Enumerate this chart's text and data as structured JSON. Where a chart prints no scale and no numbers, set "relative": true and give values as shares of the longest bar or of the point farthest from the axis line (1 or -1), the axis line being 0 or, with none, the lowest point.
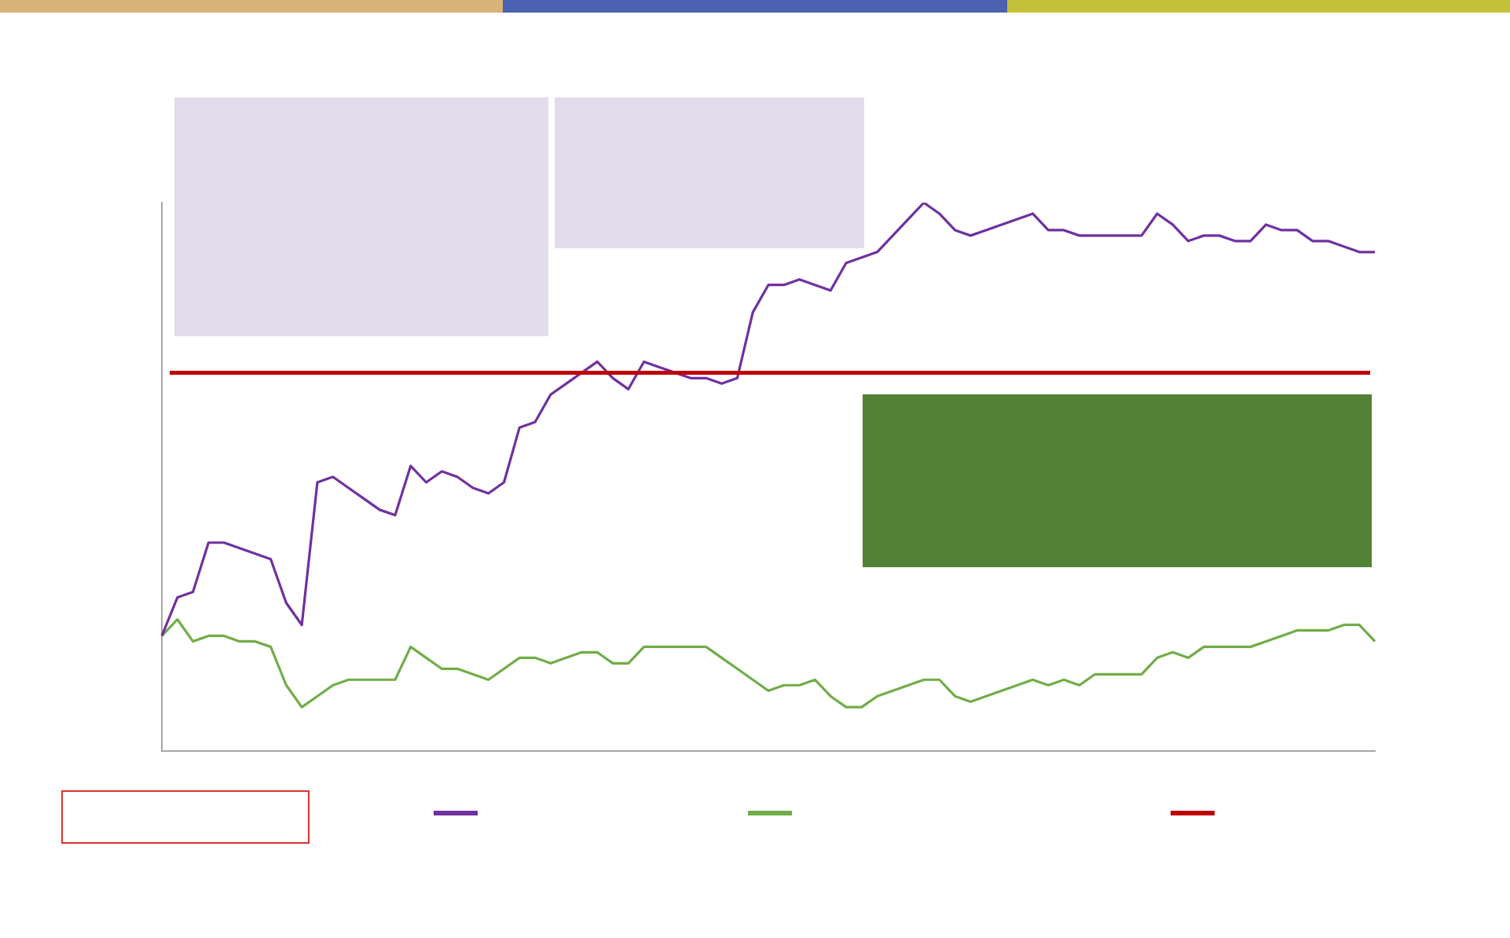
{
  "chart_data": {
    "type": "line",
    "relative": true,
    "legend": false,
    "grid": false,
    "marker": "none",
    "line_style": "solid",
    "categories": [
      null,
      null,
      null,
      null,
      null,
      null,
      null,
      null,
      null,
      null,
      null,
      null,
      null,
      null,
      null,
      null,
      null,
      null,
      null,
      null,
      null,
      null,
      null,
      null,
      null,
      null,
      null,
      null,
      null,
      null,
      null,
      null,
      null,
      null,
      null,
      null,
      null,
      null,
      null,
      null,
      null,
      null,
      null,
      null,
      null,
      null,
      null,
      null,
      null,
      null,
      null,
      null,
      null,
      null,
      null,
      null,
      null,
      null,
      null,
      null,
      null,
      null,
      null,
      null,
      null,
      null,
      null,
      null,
      null,
      null,
      null,
      null,
      null,
      null,
      null,
      null,
      null,
      null,
      null
    ],
    "series": [
      {
        "color": "#7030a0",
        "values": [
          0.21,
          0.28,
          0.29,
          0.38,
          0.38,
          0.37,
          0.36,
          0.35,
          0.27,
          0.23,
          0.49,
          0.5,
          0.48,
          0.46,
          0.44,
          0.43,
          0.52,
          0.49,
          0.51,
          0.5,
          0.48,
          0.47,
          0.49,
          0.59,
          0.6,
          0.65,
          0.67,
          0.69,
          0.71,
          0.68,
          0.66,
          0.71,
          0.7,
          0.69,
          0.68,
          0.68,
          0.67,
          0.68,
          0.8,
          0.85,
          0.85,
          0.86,
          0.85,
          0.84,
          0.89,
          0.9,
          0.91,
          0.94,
          0.97,
          1,
          0.98,
          0.95,
          0.94,
          0.95,
          0.96,
          0.97,
          0.98,
          0.95,
          0.95,
          0.94,
          0.94,
          0.94,
          0.94,
          0.94,
          0.98,
          0.96,
          0.93,
          0.94,
          0.94,
          0.93,
          0.93,
          0.96,
          0.95,
          0.95,
          0.93,
          0.93,
          0.92,
          0.91,
          0.91
        ]
      },
      {
        "color": "#70ad47",
        "values": [
          0.21,
          0.24,
          0.2,
          0.21,
          0.21,
          0.2,
          0.2,
          0.19,
          0.12,
          0.08,
          0.1,
          0.12,
          0.13,
          0.13,
          0.13,
          0.13,
          0.19,
          0.17,
          0.15,
          0.15,
          0.14,
          0.13,
          0.15,
          0.17,
          0.17,
          0.16,
          0.17,
          0.18,
          0.18,
          0.16,
          0.16,
          0.19,
          0.19,
          0.19,
          0.19,
          0.19,
          0.17,
          0.15,
          0.13,
          0.11,
          0.12,
          0.12,
          0.13,
          0.1,
          0.08,
          0.08,
          0.1,
          0.11,
          0.12,
          0.13,
          0.13,
          0.1,
          0.09,
          0.1,
          0.11,
          0.12,
          0.13,
          0.12,
          0.13,
          0.12,
          0.14,
          0.14,
          0.14,
          0.14,
          0.17,
          0.18,
          0.17,
          0.19,
          0.19,
          0.19,
          0.19,
          0.2,
          0.21,
          0.22,
          0.22,
          0.22,
          0.23,
          0.23,
          0.2
        ]
      }
    ],
    "ref_lines": [
      {
        "axis": "y",
        "value": 0.69,
        "color": "#c00000"
      }
    ]
  }
}
